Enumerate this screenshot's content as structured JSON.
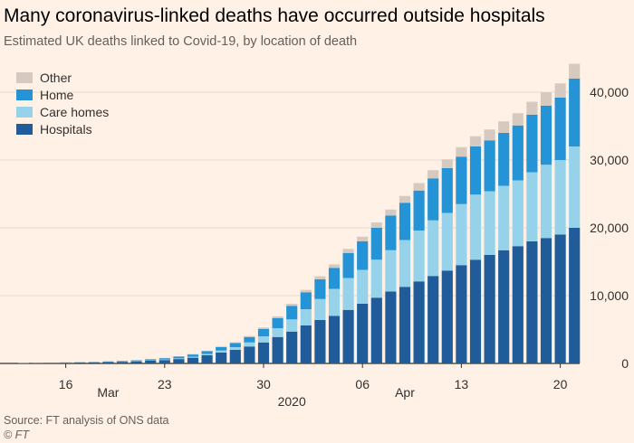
{
  "header": {
    "title": "Many coronavirus-linked deaths have occurred outside hospitals",
    "subtitle": "Estimated UK deaths linked to Covid-19, by location of death"
  },
  "footer": {
    "source": "Source: FT analysis of ONS data",
    "credit": "© FT"
  },
  "colors": {
    "background": "#fff1e5",
    "Hospitals": "#1f5c99",
    "Care homes": "#96d3ea",
    "Home": "#2594d6",
    "Other": "#d6c9bf",
    "gridline": "#e6d9ce",
    "text": "#33302e"
  },
  "chart_data": {
    "type": "bar",
    "stacked": true,
    "title": "Many coronavirus-linked deaths have occurred outside hospitals",
    "subtitle": "Estimated UK deaths linked to Covid-19, by location of death",
    "xlabel": "",
    "ylabel": "",
    "ylim": [
      0,
      40000
    ],
    "yticks": [
      0,
      10000,
      20000,
      30000,
      40000
    ],
    "ytick_labels": [
      "0",
      "10,000",
      "20,000",
      "30,000",
      "40,000"
    ],
    "y_axis_position": "right",
    "grid": true,
    "legend_position": "top-left",
    "legend": [
      "Other",
      "Home",
      "Care homes",
      "Hospitals"
    ],
    "categories": [
      "2020-03-13",
      "2020-03-14",
      "2020-03-15",
      "2020-03-16",
      "2020-03-17",
      "2020-03-18",
      "2020-03-19",
      "2020-03-20",
      "2020-03-21",
      "2020-03-22",
      "2020-03-23",
      "2020-03-24",
      "2020-03-25",
      "2020-03-26",
      "2020-03-27",
      "2020-03-28",
      "2020-03-29",
      "2020-03-30",
      "2020-03-31",
      "2020-04-01",
      "2020-04-02",
      "2020-04-03",
      "2020-04-04",
      "2020-04-05",
      "2020-04-06",
      "2020-04-07",
      "2020-04-08",
      "2020-04-09",
      "2020-04-10",
      "2020-04-11",
      "2020-04-12",
      "2020-04-13",
      "2020-04-14",
      "2020-04-15",
      "2020-04-16",
      "2020-04-17",
      "2020-04-18",
      "2020-04-19",
      "2020-04-20",
      "2020-04-21"
    ],
    "x_tick_labels": [
      {
        "date": "2020-03-16",
        "label": "16"
      },
      {
        "date": "2020-03-23",
        "label": "23"
      },
      {
        "date": "2020-03-30",
        "label": "30"
      },
      {
        "date": "2020-04-06",
        "label": "06"
      },
      {
        "date": "2020-04-13",
        "label": "13"
      },
      {
        "date": "2020-04-20",
        "label": "20"
      }
    ],
    "x_month_labels": [
      {
        "date": "2020-03-19",
        "label": "Mar"
      },
      {
        "date": "2020-04-09",
        "label": "Apr"
      }
    ],
    "x_year_label": {
      "date": "2020-04-01",
      "label": "2020"
    },
    "series": [
      {
        "name": "Hospitals",
        "values": [
          50,
          70,
          90,
          110,
          130,
          160,
          200,
          250,
          300,
          400,
          500,
          650,
          850,
          1200,
          1600,
          2000,
          2500,
          3100,
          3900,
          4700,
          5600,
          6400,
          7000,
          7900,
          8800,
          9700,
          10600,
          11300,
          12100,
          12900,
          13700,
          14500,
          15300,
          16000,
          16700,
          17300,
          18000,
          18500,
          19000,
          20000
        ]
      },
      {
        "name": "Care homes",
        "values": [
          5,
          8,
          10,
          12,
          15,
          20,
          25,
          30,
          40,
          60,
          80,
          100,
          150,
          200,
          300,
          400,
          600,
          900,
          1300,
          1800,
          2400,
          3100,
          4000,
          4700,
          5000,
          5600,
          6100,
          6900,
          7500,
          8200,
          8500,
          9000,
          9600,
          9400,
          9500,
          9700,
          10200,
          10800,
          11000,
          12000
        ]
      },
      {
        "name": "Home",
        "values": [
          10,
          15,
          20,
          30,
          40,
          50,
          70,
          90,
          120,
          160,
          200,
          260,
          320,
          400,
          500,
          600,
          800,
          1100,
          1500,
          2000,
          2500,
          2900,
          3100,
          3700,
          4200,
          4700,
          5100,
          5500,
          5900,
          6200,
          6600,
          7000,
          7100,
          7500,
          7800,
          8100,
          8500,
          8700,
          9200,
          10000
        ]
      },
      {
        "name": "Other",
        "values": [
          5,
          5,
          10,
          10,
          15,
          20,
          25,
          30,
          35,
          40,
          50,
          60,
          70,
          80,
          100,
          120,
          150,
          200,
          250,
          300,
          350,
          450,
          500,
          600,
          700,
          800,
          900,
          1000,
          1100,
          1200,
          1300,
          1400,
          1500,
          1600,
          1700,
          1800,
          1900,
          2000,
          2100,
          2200
        ]
      }
    ]
  }
}
